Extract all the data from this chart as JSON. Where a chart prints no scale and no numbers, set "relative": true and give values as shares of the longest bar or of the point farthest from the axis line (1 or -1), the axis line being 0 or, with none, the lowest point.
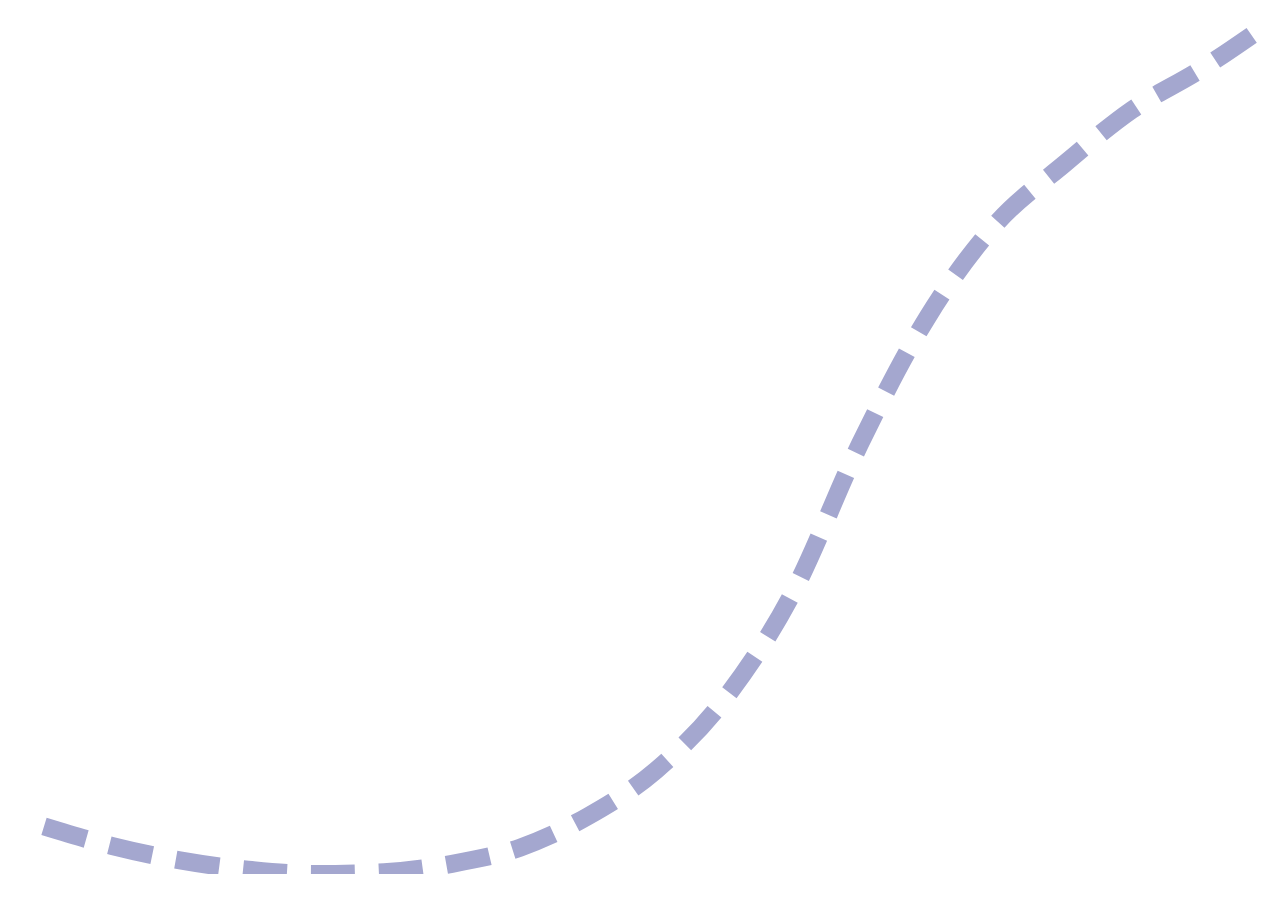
{
  "chart_data": {
    "type": "line",
    "relative": true,
    "line_style": "dashed",
    "categories": [
      null,
      null,
      null,
      null,
      null,
      null,
      null,
      null,
      null,
      null,
      null,
      null,
      null,
      null,
      null,
      null,
      null,
      null,
      null
    ],
    "series": [
      {
        "color": "#a4a7cf",
        "values": [
          0.056,
          0.033,
          0.016,
          0.005,
          0,
          0.002,
          0.012,
          0.031,
          0.068,
          0.122,
          0.205,
          0.329,
          0.506,
          0.656,
          0.765,
          0.835,
          0.899,
          0.946,
          1
        ]
      }
    ]
  }
}
